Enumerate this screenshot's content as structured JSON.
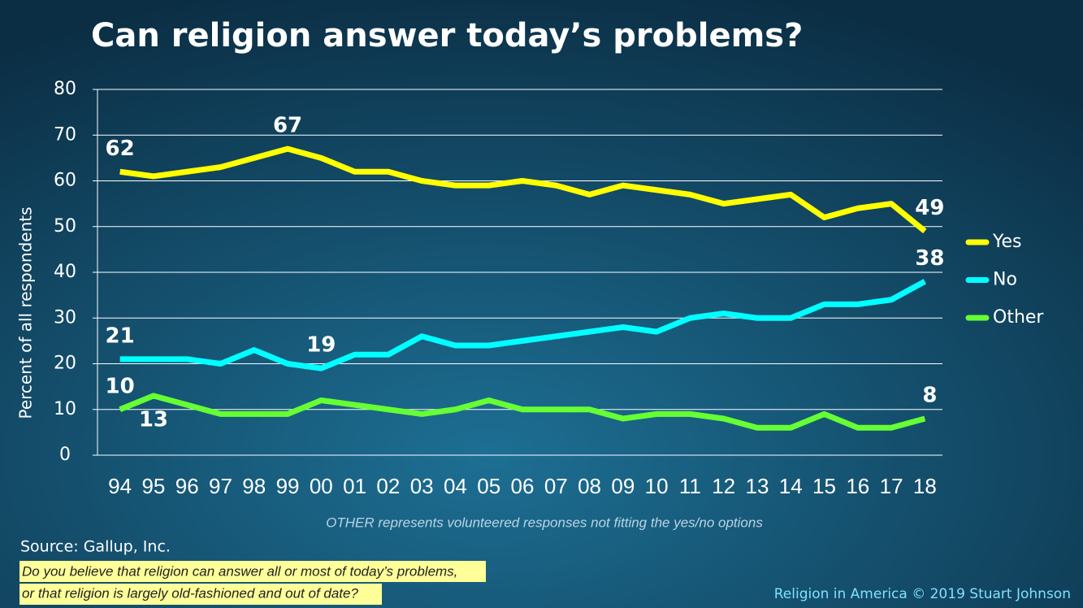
{
  "chart_data": {
    "type": "line",
    "title": "Can religion answer today’s problems?",
    "y_label": "Percent of all respondents",
    "categories": [
      "94",
      "95",
      "96",
      "97",
      "98",
      "99",
      "00",
      "01",
      "02",
      "03",
      "04",
      "05",
      "06",
      "07",
      "08",
      "09",
      "10",
      "11",
      "12",
      "13",
      "14",
      "15",
      "16",
      "17",
      "18"
    ],
    "series": [
      {
        "name": "Yes",
        "color": "#ffff00",
        "values": [
          62,
          61,
          62,
          63,
          65,
          67,
          65,
          62,
          62,
          60,
          59,
          59,
          60,
          59,
          57,
          59,
          58,
          57,
          55,
          56,
          57,
          52,
          54,
          55,
          49
        ],
        "value_labels": [
          "62",
          null,
          null,
          null,
          null,
          "67",
          null,
          null,
          null,
          null,
          null,
          null,
          null,
          null,
          null,
          null,
          null,
          null,
          null,
          null,
          null,
          null,
          null,
          null,
          "49"
        ]
      },
      {
        "name": "No",
        "color": "#00ffff",
        "values": [
          21,
          21,
          21,
          20,
          23,
          20,
          19,
          22,
          22,
          26,
          24,
          24,
          25,
          26,
          27,
          28,
          27,
          30,
          31,
          30,
          30,
          33,
          33,
          34,
          38
        ],
        "value_labels": [
          "21",
          null,
          null,
          null,
          null,
          null,
          "19",
          null,
          null,
          null,
          null,
          null,
          null,
          null,
          null,
          null,
          null,
          null,
          null,
          null,
          null,
          null,
          null,
          null,
          "38"
        ]
      },
      {
        "name": "Other",
        "color": "#66ff33",
        "values": [
          10,
          13,
          11,
          9,
          9,
          9,
          12,
          11,
          10,
          9,
          10,
          12,
          10,
          10,
          10,
          8,
          9,
          9,
          8,
          6,
          6,
          9,
          6,
          6,
          8
        ],
        "value_labels": [
          "10",
          "13",
          null,
          null,
          null,
          null,
          null,
          null,
          null,
          null,
          null,
          null,
          null,
          null,
          null,
          null,
          null,
          null,
          null,
          null,
          null,
          null,
          null,
          null,
          "8"
        ]
      }
    ],
    "ylim": [
      0,
      80
    ],
    "yticks": [
      0,
      10,
      20,
      30,
      40,
      50,
      60,
      70,
      80
    ],
    "grid": true,
    "legend": "right",
    "footnote": "OTHER represents volunteered responses not fitting the yes/no options",
    "source": "Source: Gallup, Inc.",
    "question": [
      "Do you believe that religion can answer all or most of today’s problems,",
      "or that religion is largely old-fashioned and out of date?"
    ],
    "credit": "Religion in America © 2019 Stuart Johnson"
  }
}
